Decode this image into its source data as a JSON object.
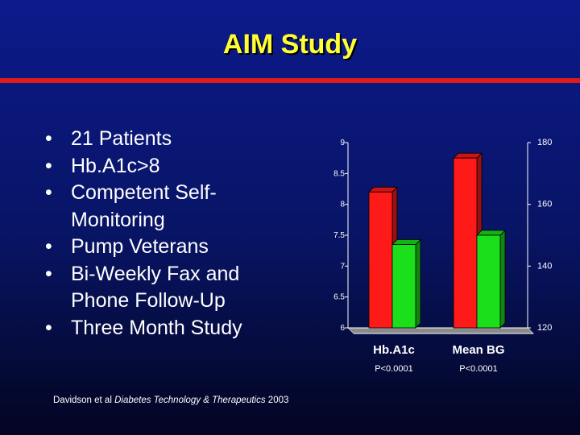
{
  "slide": {
    "title": "AIM Study",
    "bullets": [
      "21 Patients",
      "Hb.A1c>8",
      "Competent Self-Monitoring",
      "Pump Veterans",
      "Bi-Weekly Fax and Phone Follow-Up",
      "Three Month Study"
    ],
    "citation": {
      "authors": "Davidson et al ",
      "journal": "Diabetes Technology & Therapeutics",
      "year": " 2003"
    }
  },
  "colors": {
    "title": "#ffff33",
    "rule": "#e01b1b",
    "before_bar": "#ff1a1a",
    "after_bar": "#1adf1a"
  },
  "chart_data": {
    "type": "bar",
    "categories": [
      "Hb.A1c",
      "Mean BG"
    ],
    "p_values": [
      "P<0.0001",
      "P<0.0001"
    ],
    "left_axis": {
      "ylim": [
        6,
        9
      ],
      "ticks": [
        "9",
        "8.5",
        "8",
        "7.5",
        "7",
        "6.5",
        "6"
      ]
    },
    "right_axis": {
      "ylim": [
        120,
        180
      ],
      "ticks": [
        "180",
        "160",
        "140",
        "120"
      ]
    },
    "groups": [
      {
        "category": "Hb.A1c",
        "axis": "left",
        "values": [
          8.2,
          7.35
        ]
      },
      {
        "category": "Mean BG",
        "axis": "right",
        "values": [
          175,
          150
        ]
      }
    ],
    "grid": false,
    "legend": "none"
  }
}
